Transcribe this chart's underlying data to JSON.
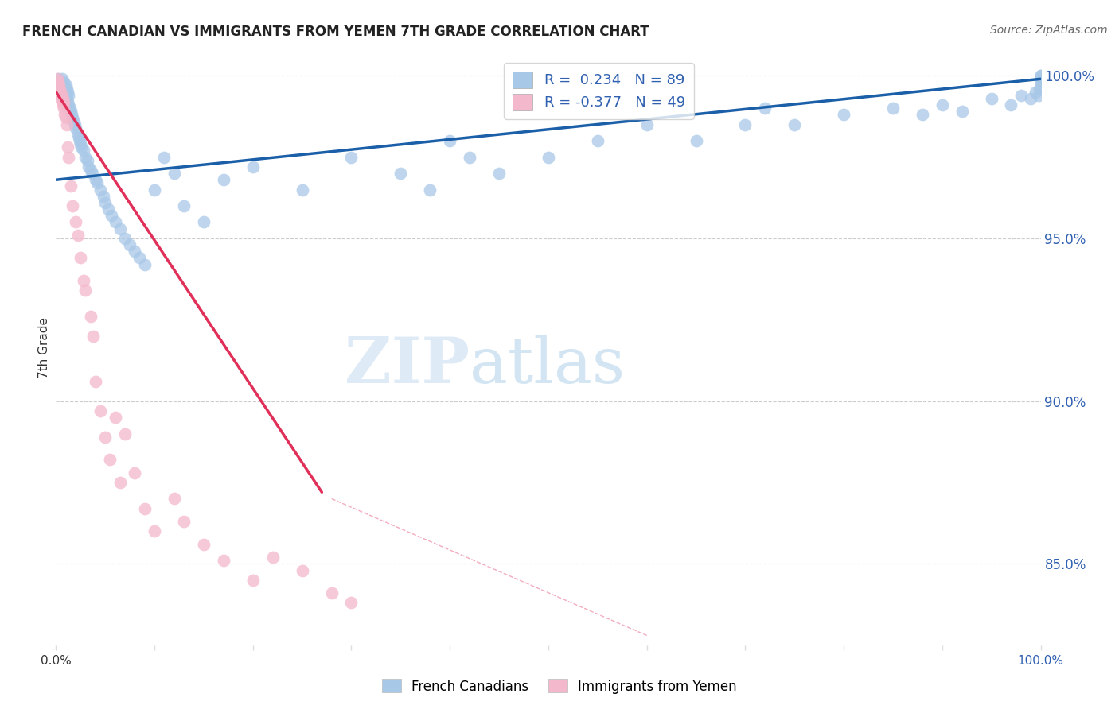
{
  "title": "FRENCH CANADIAN VS IMMIGRANTS FROM YEMEN 7TH GRADE CORRELATION CHART",
  "source": "Source: ZipAtlas.com",
  "ylabel": "7th Grade",
  "xlim": [
    0.0,
    1.0
  ],
  "ylim": [
    0.825,
    1.008
  ],
  "yticks": [
    0.85,
    0.9,
    0.95,
    1.0
  ],
  "ytick_labels": [
    "85.0%",
    "90.0%",
    "95.0%",
    "100.0%"
  ],
  "blue_R": 0.234,
  "blue_N": 89,
  "pink_R": -0.377,
  "pink_N": 49,
  "blue_color": "#a8c8e8",
  "pink_color": "#f4b8cc",
  "blue_line_color": "#1a5fa8",
  "pink_line_color": "#e0305a",
  "legend_R_color": "#3060b0",
  "watermark_color": "#deeaf5",
  "blue_scatter_x": [
    0.002,
    0.003,
    0.004,
    0.005,
    0.006,
    0.006,
    0.007,
    0.007,
    0.008,
    0.008,
    0.009,
    0.01,
    0.01,
    0.011,
    0.011,
    0.012,
    0.012,
    0.013,
    0.013,
    0.014,
    0.015,
    0.016,
    0.017,
    0.018,
    0.019,
    0.02,
    0.022,
    0.023,
    0.024,
    0.025,
    0.026,
    0.028,
    0.03,
    0.032,
    0.033,
    0.035,
    0.037,
    0.04,
    0.042,
    0.045,
    0.048,
    0.05,
    0.053,
    0.056,
    0.06,
    0.065,
    0.07,
    0.075,
    0.08,
    0.085,
    0.09,
    0.1,
    0.11,
    0.12,
    0.13,
    0.15,
    0.17,
    0.2,
    0.25,
    0.3,
    0.35,
    0.38,
    0.4,
    0.42,
    0.45,
    0.5,
    0.55,
    0.6,
    0.65,
    0.7,
    0.72,
    0.75,
    0.8,
    0.85,
    0.88,
    0.9,
    0.92,
    0.95,
    0.97,
    0.98,
    0.99,
    0.995,
    0.998,
    0.999,
    1.0,
    1.0,
    1.0,
    1.0,
    1.0
  ],
  "blue_scatter_y": [
    0.999,
    0.998,
    0.997,
    0.998,
    0.996,
    0.999,
    0.997,
    0.995,
    0.996,
    0.998,
    0.995,
    0.994,
    0.997,
    0.993,
    0.996,
    0.992,
    0.995,
    0.991,
    0.994,
    0.99,
    0.989,
    0.988,
    0.987,
    0.986,
    0.985,
    0.984,
    0.982,
    0.981,
    0.98,
    0.979,
    0.978,
    0.977,
    0.975,
    0.974,
    0.972,
    0.971,
    0.97,
    0.968,
    0.967,
    0.965,
    0.963,
    0.961,
    0.959,
    0.957,
    0.955,
    0.953,
    0.95,
    0.948,
    0.946,
    0.944,
    0.942,
    0.965,
    0.975,
    0.97,
    0.96,
    0.955,
    0.968,
    0.972,
    0.965,
    0.975,
    0.97,
    0.965,
    0.98,
    0.975,
    0.97,
    0.975,
    0.98,
    0.985,
    0.98,
    0.985,
    0.99,
    0.985,
    0.988,
    0.99,
    0.988,
    0.991,
    0.989,
    0.993,
    0.991,
    0.994,
    0.993,
    0.995,
    0.994,
    0.996,
    0.997,
    0.998,
    0.999,
    1.0,
    1.0
  ],
  "pink_scatter_x": [
    0.001,
    0.001,
    0.002,
    0.002,
    0.003,
    0.003,
    0.004,
    0.004,
    0.005,
    0.005,
    0.006,
    0.006,
    0.007,
    0.007,
    0.008,
    0.008,
    0.009,
    0.01,
    0.011,
    0.012,
    0.013,
    0.015,
    0.017,
    0.02,
    0.022,
    0.025,
    0.028,
    0.03,
    0.035,
    0.038,
    0.04,
    0.045,
    0.05,
    0.055,
    0.06,
    0.065,
    0.07,
    0.08,
    0.09,
    0.1,
    0.12,
    0.13,
    0.15,
    0.17,
    0.2,
    0.22,
    0.25,
    0.28,
    0.3
  ],
  "pink_scatter_y": [
    0.999,
    0.997,
    0.998,
    0.996,
    0.997,
    0.995,
    0.996,
    0.994,
    0.995,
    0.993,
    0.994,
    0.992,
    0.993,
    0.991,
    0.992,
    0.99,
    0.988,
    0.987,
    0.985,
    0.978,
    0.975,
    0.966,
    0.96,
    0.955,
    0.951,
    0.944,
    0.937,
    0.934,
    0.926,
    0.92,
    0.906,
    0.897,
    0.889,
    0.882,
    0.895,
    0.875,
    0.89,
    0.878,
    0.867,
    0.86,
    0.87,
    0.863,
    0.856,
    0.851,
    0.845,
    0.852,
    0.848,
    0.841,
    0.838
  ],
  "blue_trend_x": [
    0.0,
    1.0
  ],
  "blue_trend_y": [
    0.968,
    0.999
  ],
  "pink_trend_x": [
    0.0,
    0.27
  ],
  "pink_trend_y": [
    0.995,
    0.872
  ],
  "diag_trend_x": [
    0.28,
    0.6
  ],
  "diag_trend_y": [
    0.87,
    0.828
  ]
}
